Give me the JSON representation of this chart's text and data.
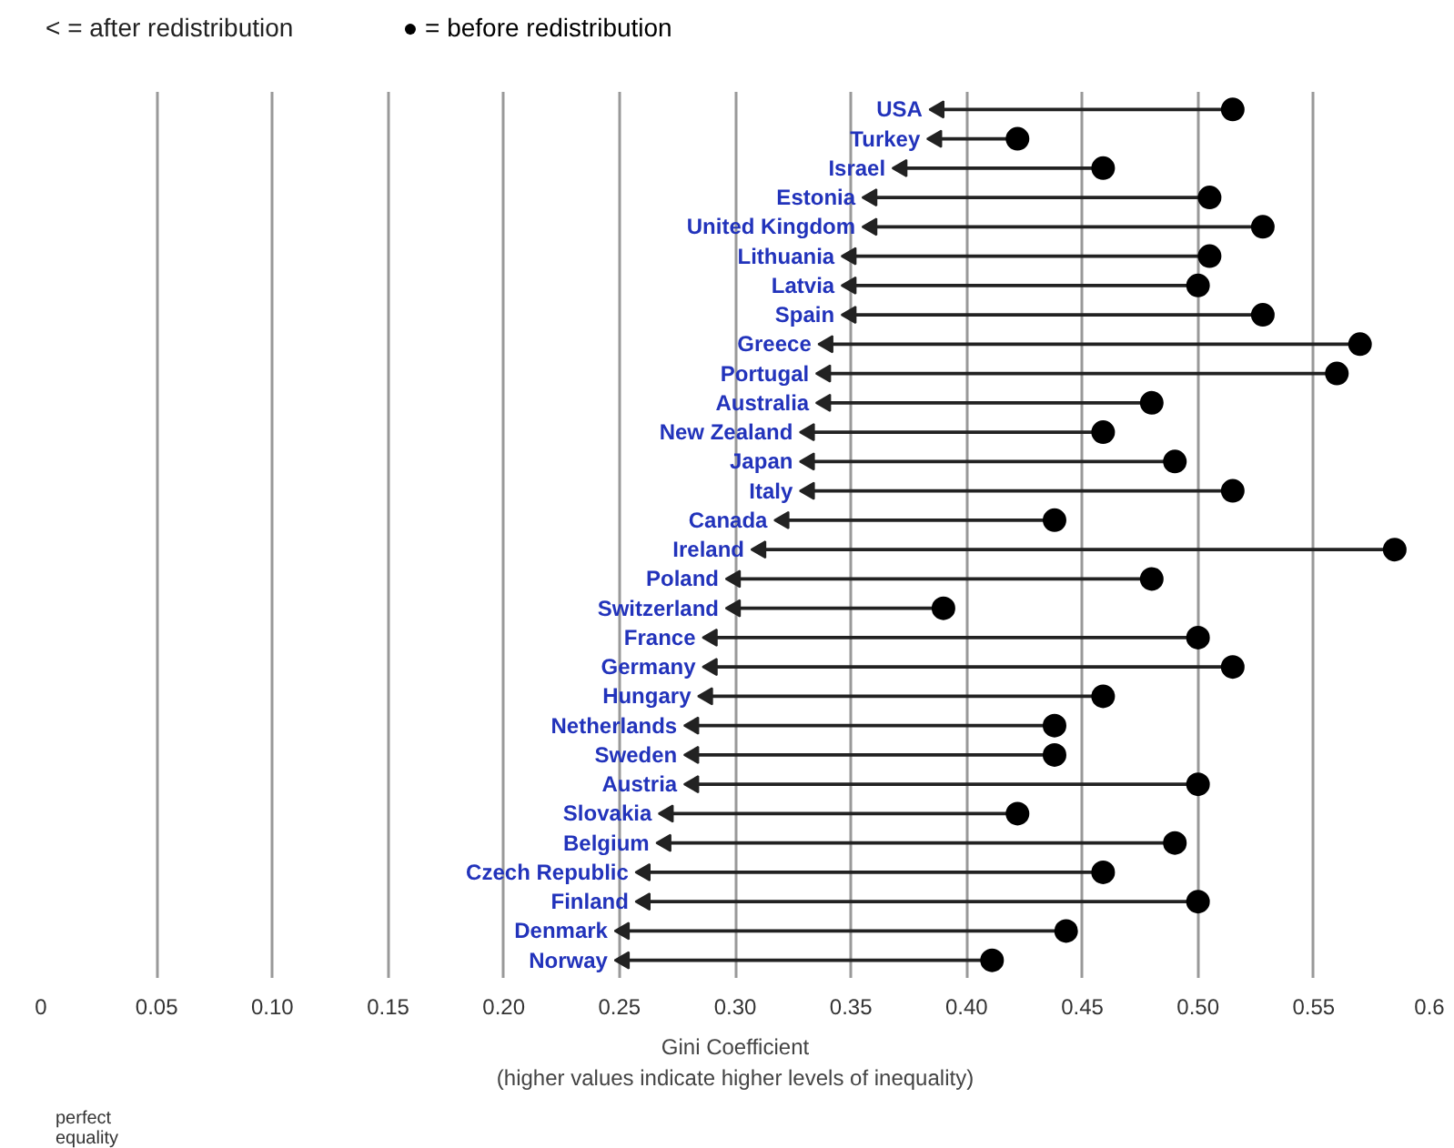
{
  "chart_data": {
    "type": "scatter",
    "orientation": "horizontal",
    "categories": [
      "USA",
      "Turkey",
      "Israel",
      "Estonia",
      "United Kingdom",
      "Lithuania",
      "Latvia",
      "Spain",
      "Greece",
      "Portugal",
      "Australia",
      "New Zealand",
      "Japan",
      "Italy",
      "Canada",
      "Ireland",
      "Poland",
      "Switzerland",
      "France",
      "Germany",
      "Hungary",
      "Netherlands",
      "Sweden",
      "Austria",
      "Slovakia",
      "Belgium",
      "Czech Republic",
      "Finland",
      "Denmark",
      "Norway"
    ],
    "series": [
      {
        "name": "< = after redistribution",
        "color": "#222222",
        "marker": "triangle",
        "values": [
          0.388,
          0.387,
          0.372,
          0.359,
          0.359,
          0.35,
          0.35,
          0.35,
          0.34,
          0.339,
          0.339,
          0.332,
          0.332,
          0.332,
          0.321,
          0.311,
          0.3,
          0.3,
          0.29,
          0.29,
          0.288,
          0.282,
          0.282,
          0.282,
          0.271,
          0.27,
          0.261,
          0.261,
          0.252,
          0.252
        ]
      },
      {
        "name": "● = before redistribution",
        "color": "#000000",
        "marker": "circle",
        "values": [
          0.515,
          0.422,
          0.459,
          0.505,
          0.528,
          0.505,
          0.5,
          0.528,
          0.57,
          0.56,
          0.48,
          0.459,
          0.49,
          0.515,
          0.438,
          0.585,
          0.48,
          0.39,
          0.5,
          0.515,
          0.459,
          0.438,
          0.438,
          0.5,
          0.422,
          0.49,
          0.459,
          0.5,
          0.443,
          0.411
        ]
      }
    ],
    "xlabel": "Gini Coefficient\n(higher values indicate higher levels of inequality)",
    "xlim": [
      0,
      0.6
    ],
    "xticks": [
      0,
      0.05,
      {
        "value": 0.1,
        "label": "0.10"
      },
      {
        "value": 0.15,
        "label": "0.15"
      },
      {
        "value": 0.2,
        "label": "0.20"
      },
      {
        "value": 0.25,
        "label": "0.25"
      },
      {
        "value": 0.3,
        "label": "0.30"
      },
      {
        "value": 0.35,
        "label": "0.35"
      },
      {
        "value": 0.4,
        "label": "0.40"
      },
      {
        "value": 0.45,
        "label": "0.45"
      },
      {
        "value": 0.5,
        "label": "0.50"
      },
      {
        "value": 0.55,
        "label": "0.55"
      },
      0.6
    ],
    "annotations": [
      "perfect\nequality"
    ],
    "grid": "x"
  }
}
